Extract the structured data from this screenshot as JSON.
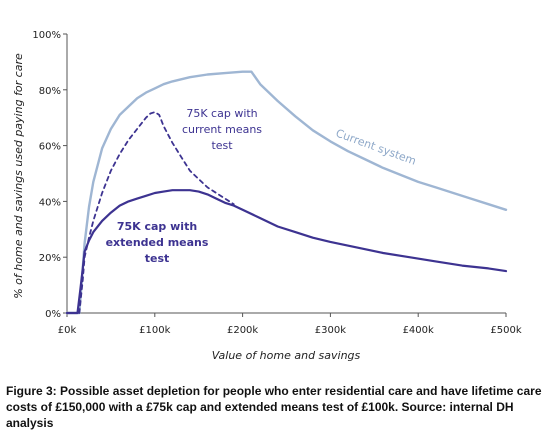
{
  "chart_data": {
    "type": "line",
    "xlabel": "Value of home and savings",
    "ylabel": "% of home and savings used paying for care",
    "xlim": [
      0,
      500000
    ],
    "ylim": [
      0,
      100
    ],
    "x_ticks": [
      {
        "value": 0,
        "label": "£0k"
      },
      {
        "value": 100000,
        "label": "£100k"
      },
      {
        "value": 200000,
        "label": "£200k"
      },
      {
        "value": 300000,
        "label": "£300k"
      },
      {
        "value": 400000,
        "label": "£400k"
      },
      {
        "value": 500000,
        "label": "£500k"
      }
    ],
    "y_ticks": [
      {
        "value": 0,
        "label": "0%"
      },
      {
        "value": 20,
        "label": "20%"
      },
      {
        "value": 40,
        "label": "40%"
      },
      {
        "value": 60,
        "label": "60%"
      },
      {
        "value": 80,
        "label": "80%"
      },
      {
        "value": 100,
        "label": "100%"
      }
    ],
    "grid": false,
    "series": [
      {
        "name": "Current system",
        "style": "solid",
        "color": "#9fb6d3",
        "x": [
          0,
          14000,
          17000,
          20000,
          25000,
          30000,
          40000,
          50000,
          60000,
          70000,
          80000,
          90000,
          100000,
          110000,
          120000,
          140000,
          160000,
          180000,
          200000,
          210000,
          220000,
          240000,
          260000,
          280000,
          300000,
          320000,
          340000,
          360000,
          380000,
          400000,
          420000,
          440000,
          460000,
          480000,
          500000
        ],
        "y": [
          0,
          0,
          12,
          25,
          38,
          47,
          59,
          66,
          71,
          74,
          77,
          79,
          80.5,
          82,
          83,
          84.5,
          85.5,
          86,
          86.5,
          86.5,
          82,
          76,
          70.5,
          65.5,
          61.5,
          58,
          55,
          52,
          49.5,
          47,
          45,
          43,
          41,
          39,
          37
        ]
      },
      {
        "name": "75K cap with current means test",
        "style": "dashed",
        "color": "#3d3391",
        "x": [
          14000,
          18000,
          20000,
          25000,
          30000,
          40000,
          50000,
          60000,
          70000,
          80000,
          90000,
          95000,
          100000,
          105000,
          110000,
          120000,
          130000,
          140000,
          150000,
          160000,
          170000,
          180000,
          190000
        ],
        "y": [
          0,
          12,
          20,
          27,
          33,
          43,
          51,
          57,
          62,
          66,
          70,
          71.5,
          72,
          71,
          67,
          61,
          56,
          51,
          48,
          45,
          43,
          41,
          39
        ]
      },
      {
        "name": "75K cap with extended means test",
        "style": "solid",
        "color": "#3d3391",
        "x": [
          0,
          12000,
          15000,
          18000,
          20000,
          25000,
          30000,
          40000,
          50000,
          60000,
          70000,
          80000,
          90000,
          100000,
          110000,
          120000,
          130000,
          140000,
          150000,
          160000,
          170000,
          180000,
          190000,
          200000,
          220000,
          240000,
          260000,
          280000,
          300000,
          330000,
          360000,
          390000,
          420000,
          450000,
          480000,
          500000
        ],
        "y": [
          0,
          0,
          8,
          16,
          22,
          26,
          29,
          33,
          36,
          38.5,
          40,
          41,
          42,
          43,
          43.5,
          44,
          44,
          44,
          43.5,
          42.5,
          41,
          39.5,
          38.5,
          37,
          34,
          31,
          29,
          27,
          25.5,
          23.5,
          21.5,
          20,
          18.5,
          17,
          16,
          15
        ]
      }
    ],
    "annotations": {
      "current_system": "Current system",
      "cap_current_line1": "75K cap with",
      "cap_current_line2": "current means",
      "cap_current_line3": "test",
      "cap_extended_line1": "75K cap with",
      "cap_extended_line2": "extended means",
      "cap_extended_line3": "test"
    }
  },
  "caption": "Figure 3: Possible asset depletion for people who enter residential care and have lifetime care costs of £150,000 with a £75k cap and extended means test of £100k.  Source: internal DH analysis"
}
